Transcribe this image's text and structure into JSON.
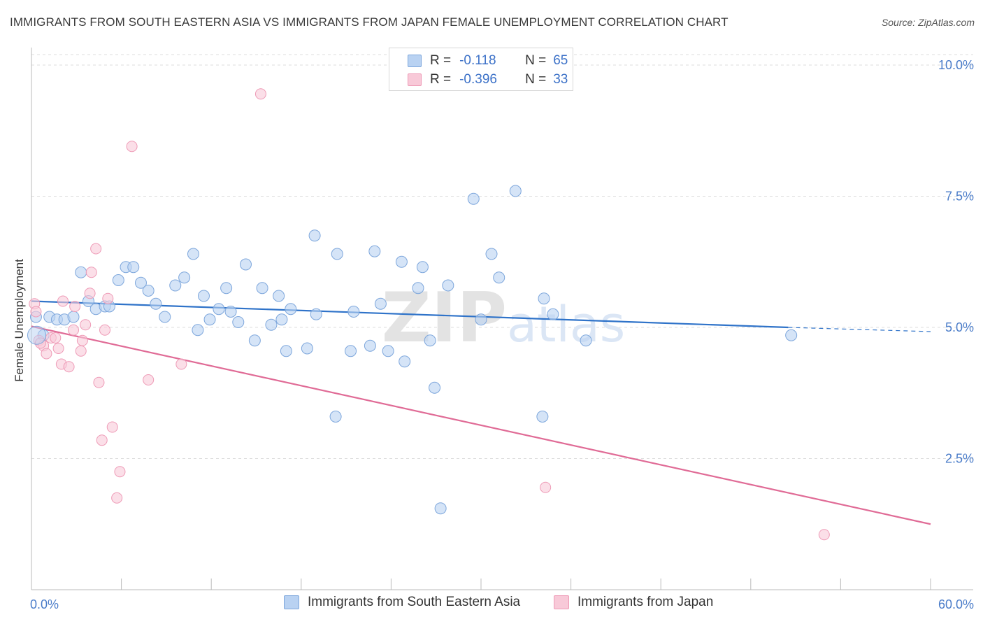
{
  "title": "IMMIGRANTS FROM SOUTH EASTERN ASIA VS IMMIGRANTS FROM JAPAN FEMALE UNEMPLOYMENT CORRELATION CHART",
  "source": "Source: ZipAtlas.com",
  "legend": {
    "rows": [
      {
        "r_label": "R =",
        "r_value": "-0.118",
        "n_label": "N =",
        "n_value": "65"
      },
      {
        "r_label": "R =",
        "r_value": "-0.396",
        "n_label": "N =",
        "n_value": "33"
      }
    ]
  },
  "bottom_legend": [
    "Immigrants from South Eastern Asia",
    "Immigrants from Japan"
  ],
  "watermark": "ZIPatlas",
  "colors": {
    "blue_fill": "#b9d2f2",
    "blue_stroke": "#7ea7dc",
    "blue_line": "#2f73c9",
    "pink_fill": "#f8c9d8",
    "pink_stroke": "#ee9ab6",
    "pink_line": "#e06b96",
    "tick_text": "#4a7cc9"
  },
  "chart_data": {
    "type": "scatter",
    "title": "IMMIGRANTS FROM SOUTH EASTERN ASIA VS IMMIGRANTS FROM JAPAN FEMALE UNEMPLOYMENT CORRELATION CHART",
    "xlabel": "",
    "ylabel": "Female Unemployment",
    "xlim": [
      0,
      60
    ],
    "ylim": [
      0,
      10.2
    ],
    "x_tick_labels": [
      "0.0%",
      "60.0%"
    ],
    "y_ticks": [
      2.5,
      5.0,
      7.5,
      10.0
    ],
    "y_tick_labels": [
      "2.5%",
      "5.0%",
      "7.5%",
      "10.0%"
    ],
    "grid": "horizontal dashed",
    "legend_position": "top-center",
    "series": [
      {
        "name": "Immigrants from South Eastern Asia",
        "trend": {
          "x0": 0,
          "y0": 5.5,
          "x1": 50.5,
          "y1": 5.0,
          "dashed_to_x": 60,
          "dashed_to_y": 4.92
        },
        "points": [
          [
            0.3,
            5.2
          ],
          [
            0.8,
            4.85
          ],
          [
            1.2,
            5.2
          ],
          [
            1.7,
            5.15
          ],
          [
            2.2,
            5.15
          ],
          [
            2.8,
            5.2
          ],
          [
            3.3,
            6.05
          ],
          [
            3.8,
            5.5
          ],
          [
            4.3,
            5.35
          ],
          [
            4.9,
            5.4
          ],
          [
            5.2,
            5.4
          ],
          [
            5.8,
            5.9
          ],
          [
            6.3,
            6.15
          ],
          [
            6.8,
            6.15
          ],
          [
            7.3,
            5.85
          ],
          [
            7.8,
            5.7
          ],
          [
            8.3,
            5.45
          ],
          [
            8.9,
            5.2
          ],
          [
            9.6,
            5.8
          ],
          [
            10.2,
            5.95
          ],
          [
            10.8,
            6.4
          ],
          [
            11.1,
            4.95
          ],
          [
            11.5,
            5.6
          ],
          [
            11.9,
            5.15
          ],
          [
            12.5,
            5.35
          ],
          [
            13.0,
            5.75
          ],
          [
            13.3,
            5.3
          ],
          [
            13.8,
            5.1
          ],
          [
            14.3,
            6.2
          ],
          [
            14.9,
            4.75
          ],
          [
            15.4,
            5.75
          ],
          [
            16.0,
            5.05
          ],
          [
            16.5,
            5.6
          ],
          [
            16.7,
            5.15
          ],
          [
            17.3,
            5.35
          ],
          [
            17.0,
            4.55
          ],
          [
            18.4,
            4.6
          ],
          [
            18.9,
            6.75
          ],
          [
            19.0,
            5.25
          ],
          [
            20.3,
            3.3
          ],
          [
            20.4,
            6.4
          ],
          [
            21.3,
            4.55
          ],
          [
            21.5,
            5.3
          ],
          [
            22.6,
            4.65
          ],
          [
            22.9,
            6.45
          ],
          [
            23.3,
            5.45
          ],
          [
            23.8,
            4.55
          ],
          [
            24.7,
            6.25
          ],
          [
            24.9,
            4.35
          ],
          [
            25.8,
            5.75
          ],
          [
            26.1,
            6.15
          ],
          [
            26.6,
            4.75
          ],
          [
            26.9,
            3.85
          ],
          [
            27.3,
            1.55
          ],
          [
            27.8,
            5.8
          ],
          [
            29.5,
            7.45
          ],
          [
            30.0,
            5.15
          ],
          [
            30.7,
            6.4
          ],
          [
            31.2,
            5.95
          ],
          [
            32.3,
            7.6
          ],
          [
            34.2,
            5.55
          ],
          [
            34.8,
            5.25
          ],
          [
            34.1,
            3.3
          ],
          [
            37.0,
            4.75
          ],
          [
            50.7,
            4.85
          ]
        ]
      },
      {
        "name": "Immigrants from Japan",
        "trend": {
          "x0": 0,
          "y0": 5.02,
          "x1": 60,
          "y1": 1.25
        },
        "points": [
          [
            0.2,
            5.45
          ],
          [
            0.3,
            5.3
          ],
          [
            0.5,
            4.75
          ],
          [
            0.8,
            4.65
          ],
          [
            1.0,
            4.5
          ],
          [
            1.3,
            4.8
          ],
          [
            1.6,
            4.8
          ],
          [
            1.8,
            4.6
          ],
          [
            2.0,
            4.3
          ],
          [
            2.1,
            5.5
          ],
          [
            2.5,
            4.25
          ],
          [
            2.8,
            4.95
          ],
          [
            2.9,
            5.4
          ],
          [
            3.3,
            4.55
          ],
          [
            3.4,
            4.75
          ],
          [
            3.6,
            5.05
          ],
          [
            3.9,
            5.65
          ],
          [
            4.0,
            6.05
          ],
          [
            4.3,
            6.5
          ],
          [
            4.5,
            3.95
          ],
          [
            4.7,
            2.85
          ],
          [
            4.9,
            4.95
          ],
          [
            5.1,
            5.55
          ],
          [
            5.4,
            3.1
          ],
          [
            5.7,
            1.75
          ],
          [
            5.9,
            2.25
          ],
          [
            6.7,
            8.45
          ],
          [
            7.8,
            4.0
          ],
          [
            10.0,
            4.3
          ],
          [
            15.3,
            9.45
          ],
          [
            34.3,
            1.95
          ],
          [
            52.9,
            1.05
          ],
          [
            0.6,
            4.7
          ]
        ]
      }
    ]
  }
}
